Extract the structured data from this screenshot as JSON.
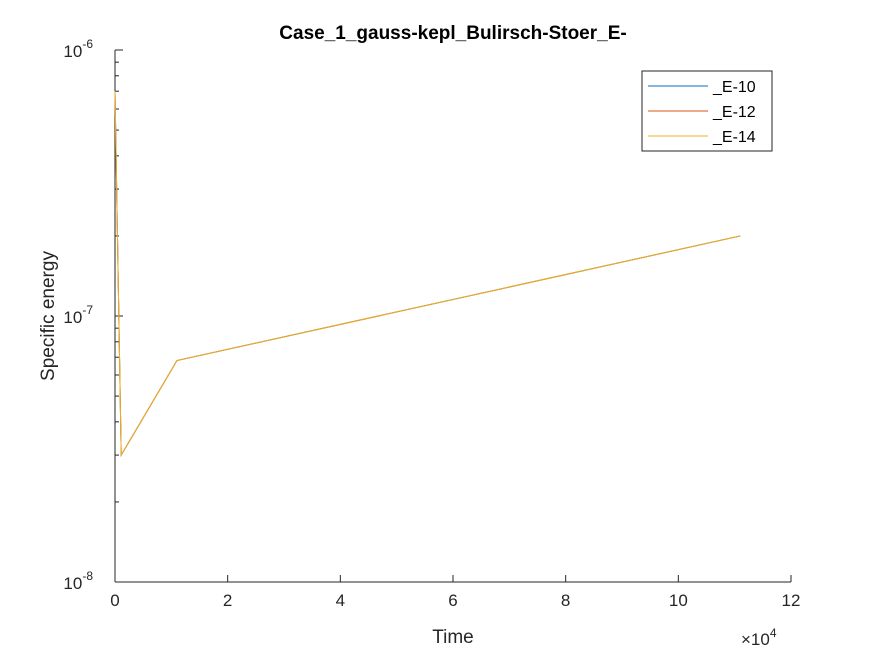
{
  "chart_data": {
    "type": "line",
    "title": "Case_1_gauss-kepl_Bulirsch-Stoer_E-",
    "xlabel": "Time",
    "ylabel": "Specific energy",
    "x_exponent_label": "×10",
    "x_exponent_power": "4",
    "xlim": [
      0,
      120000
    ],
    "ylim": [
      1e-08,
      1e-06
    ],
    "yscale": "log",
    "grid": false,
    "legend_position": "top-right",
    "x_ticks": [
      0,
      20000,
      40000,
      60000,
      80000,
      100000,
      120000
    ],
    "x_tick_labels": [
      "0",
      "2",
      "4",
      "6",
      "8",
      "10",
      "12"
    ],
    "y_ticks": [
      {
        "value": 1e-08,
        "base": "10",
        "exp": "-8"
      },
      {
        "value": 1e-07,
        "base": "10",
        "exp": "-7"
      },
      {
        "value": 1e-06,
        "base": "10",
        "exp": "-6"
      }
    ],
    "series": [
      {
        "name": "_E-10",
        "color": "#0072BD",
        "x": [
          0,
          1100,
          11000,
          111000
        ],
        "y": [
          7e-07,
          3e-08,
          6.8e-08,
          2e-07
        ]
      },
      {
        "name": "_E-12",
        "color": "#D95319",
        "x": [
          0,
          1100,
          11000,
          111000
        ],
        "y": [
          7e-07,
          3e-08,
          6.8e-08,
          2e-07
        ]
      },
      {
        "name": "_E-14",
        "color": "#EDB120",
        "x": [
          0,
          1100,
          11000,
          111000
        ],
        "y": [
          7e-07,
          3e-08,
          6.8e-08,
          2e-07
        ]
      }
    ]
  }
}
